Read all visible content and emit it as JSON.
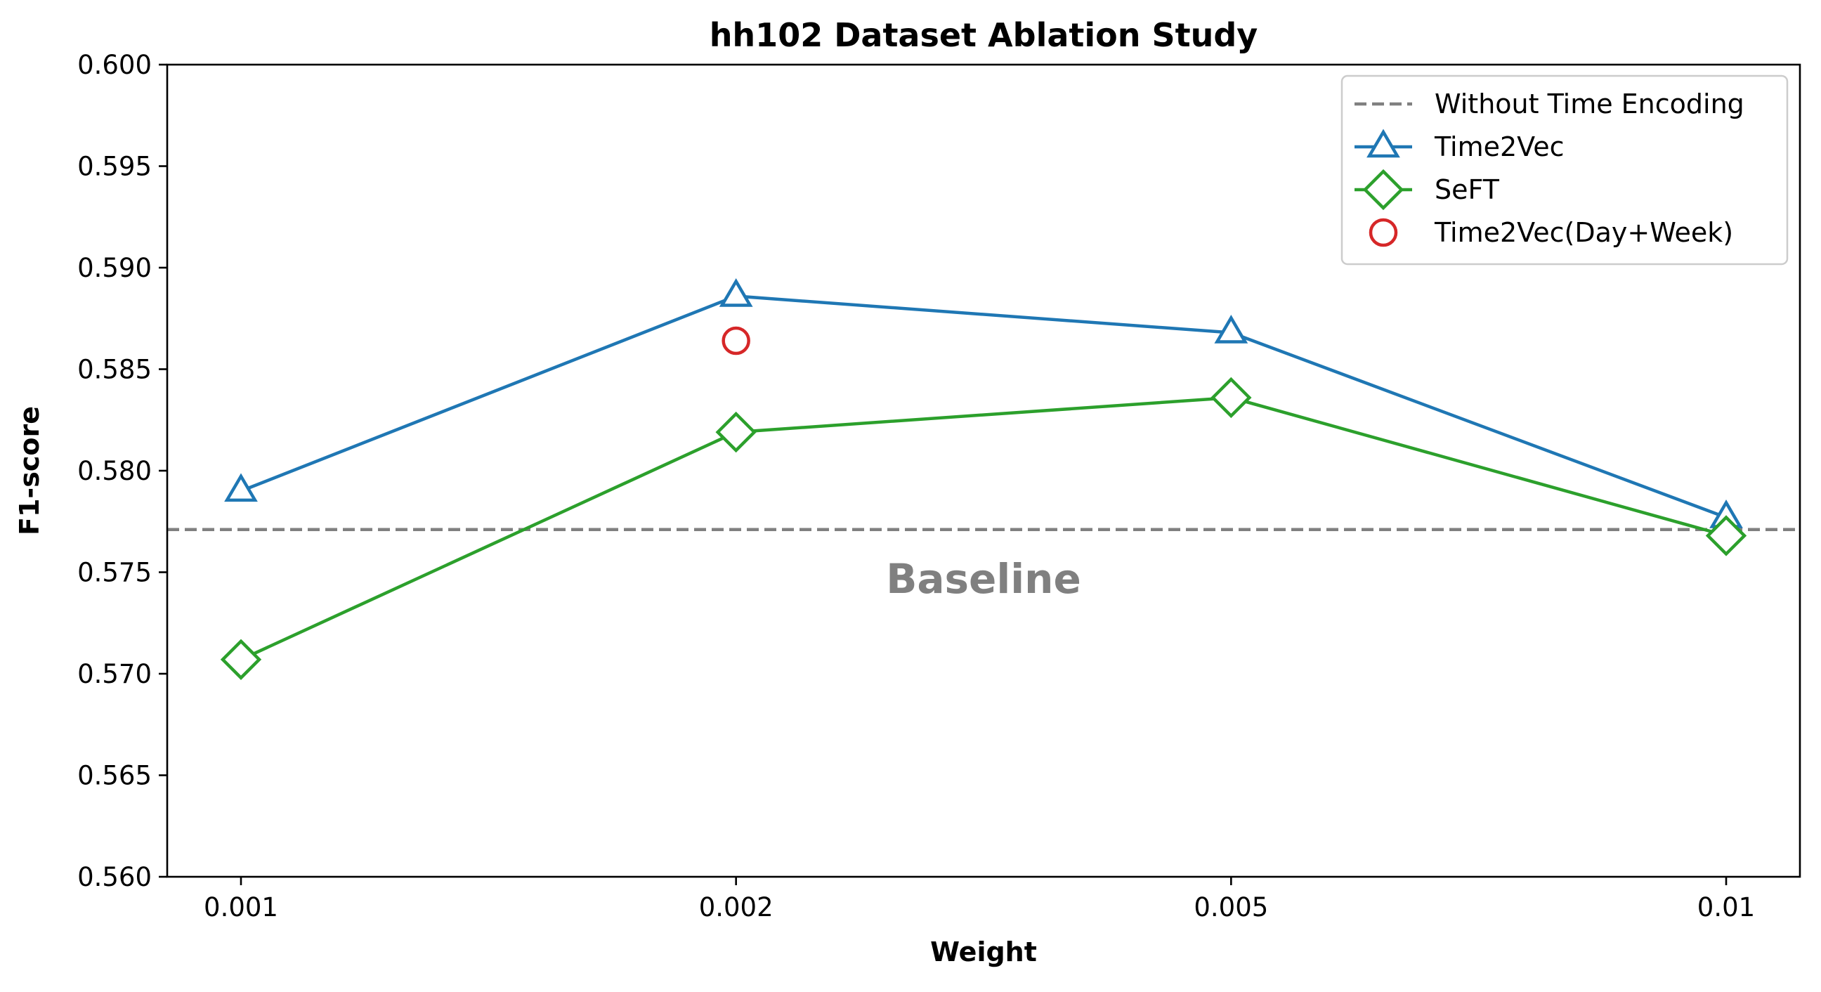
{
  "chart_data": {
    "type": "line",
    "title": "hh102 Dataset Ablation Study",
    "xlabel": "Weight",
    "ylabel": "F1-score",
    "categories": [
      "0.001",
      "0.002",
      "0.005",
      "0.01"
    ],
    "ylim": [
      0.56,
      0.6
    ],
    "yticks": [
      "0.560",
      "0.565",
      "0.570",
      "0.575",
      "0.580",
      "0.585",
      "0.590",
      "0.595",
      "0.600"
    ],
    "grid": false,
    "legend_position": "top-right",
    "baseline": {
      "name": "Without Time Encoding",
      "value": 0.5771,
      "color": "#808080",
      "style": "dashed"
    },
    "series": [
      {
        "name": "Time2Vec",
        "values": [
          0.579,
          0.5886,
          0.5868,
          0.5777
        ],
        "color": "#1f77b4",
        "marker": "triangle"
      },
      {
        "name": "SeFT",
        "values": [
          0.5707,
          0.5819,
          0.5836,
          0.5768
        ],
        "color": "#2ca02c",
        "marker": "diamond"
      }
    ],
    "points": [
      {
        "name": "Time2Vec(Day+Week)",
        "category": "0.002",
        "value": 0.5864,
        "color": "#d62728",
        "marker": "circle"
      }
    ],
    "annotations": [
      {
        "text": "Baseline",
        "category_position": 1.5,
        "value": 0.5746,
        "color": "#808080"
      }
    ]
  }
}
